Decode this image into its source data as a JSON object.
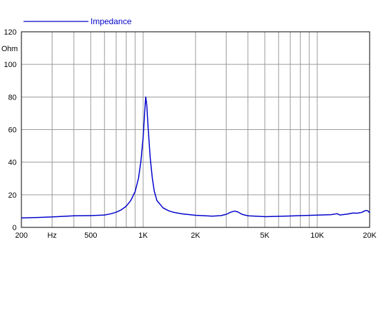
{
  "chart_data": {
    "type": "line",
    "title": "",
    "xlabel": "",
    "ylabel": "",
    "x_scale": "log",
    "xlim": [
      200,
      20000
    ],
    "ylim": [
      0,
      120
    ],
    "grid": true,
    "legend_position": "top-left",
    "y_unit_label": "Ohm",
    "x_ticks": [
      {
        "value": 200,
        "label": "200"
      },
      {
        "value": 300,
        "label": "Hz"
      },
      {
        "value": 500,
        "label": "500"
      },
      {
        "value": 1000,
        "label": "1K"
      },
      {
        "value": 2000,
        "label": "2K"
      },
      {
        "value": 5000,
        "label": "5K"
      },
      {
        "value": 10000,
        "label": "10K"
      },
      {
        "value": 20000,
        "label": "20K"
      }
    ],
    "x_gridlines": [
      300,
      400,
      500,
      600,
      700,
      800,
      900,
      1000,
      2000,
      3000,
      4000,
      5000,
      6000,
      7000,
      8000,
      9000,
      10000
    ],
    "y_ticks": [
      0,
      20,
      40,
      60,
      80,
      100,
      120
    ],
    "series": [
      {
        "name": "Impedance",
        "color": "#0000cc",
        "points": [
          [
            200,
            5.8
          ],
          [
            250,
            6.1
          ],
          [
            300,
            6.4
          ],
          [
            350,
            6.8
          ],
          [
            400,
            7.1
          ],
          [
            500,
            7.2
          ],
          [
            600,
            7.6
          ],
          [
            650,
            8.3
          ],
          [
            700,
            9.3
          ],
          [
            750,
            10.8
          ],
          [
            800,
            13
          ],
          [
            850,
            16.5
          ],
          [
            900,
            22
          ],
          [
            940,
            30
          ],
          [
            970,
            40
          ],
          [
            1000,
            55
          ],
          [
            1020,
            70
          ],
          [
            1035,
            80
          ],
          [
            1050,
            75
          ],
          [
            1070,
            60
          ],
          [
            1100,
            42
          ],
          [
            1130,
            30
          ],
          [
            1160,
            22
          ],
          [
            1200,
            16.5
          ],
          [
            1300,
            12
          ],
          [
            1400,
            10.2
          ],
          [
            1500,
            9.2
          ],
          [
            1700,
            8.2
          ],
          [
            2000,
            7.4
          ],
          [
            2500,
            6.9
          ],
          [
            2800,
            7.2
          ],
          [
            3000,
            8
          ],
          [
            3200,
            9.4
          ],
          [
            3350,
            10
          ],
          [
            3500,
            9.5
          ],
          [
            3700,
            8
          ],
          [
            4000,
            7.1
          ],
          [
            5000,
            6.6
          ],
          [
            6000,
            6.8
          ],
          [
            7000,
            7
          ],
          [
            8000,
            7.2
          ],
          [
            10000,
            7.5
          ],
          [
            12000,
            7.8
          ],
          [
            13000,
            8.4
          ],
          [
            13500,
            7.6
          ],
          [
            15000,
            8.2
          ],
          [
            16000,
            8.8
          ],
          [
            17000,
            8.7
          ],
          [
            18000,
            9.2
          ],
          [
            19000,
            10.4
          ],
          [
            19500,
            10.2
          ],
          [
            20000,
            9
          ]
        ]
      }
    ]
  }
}
